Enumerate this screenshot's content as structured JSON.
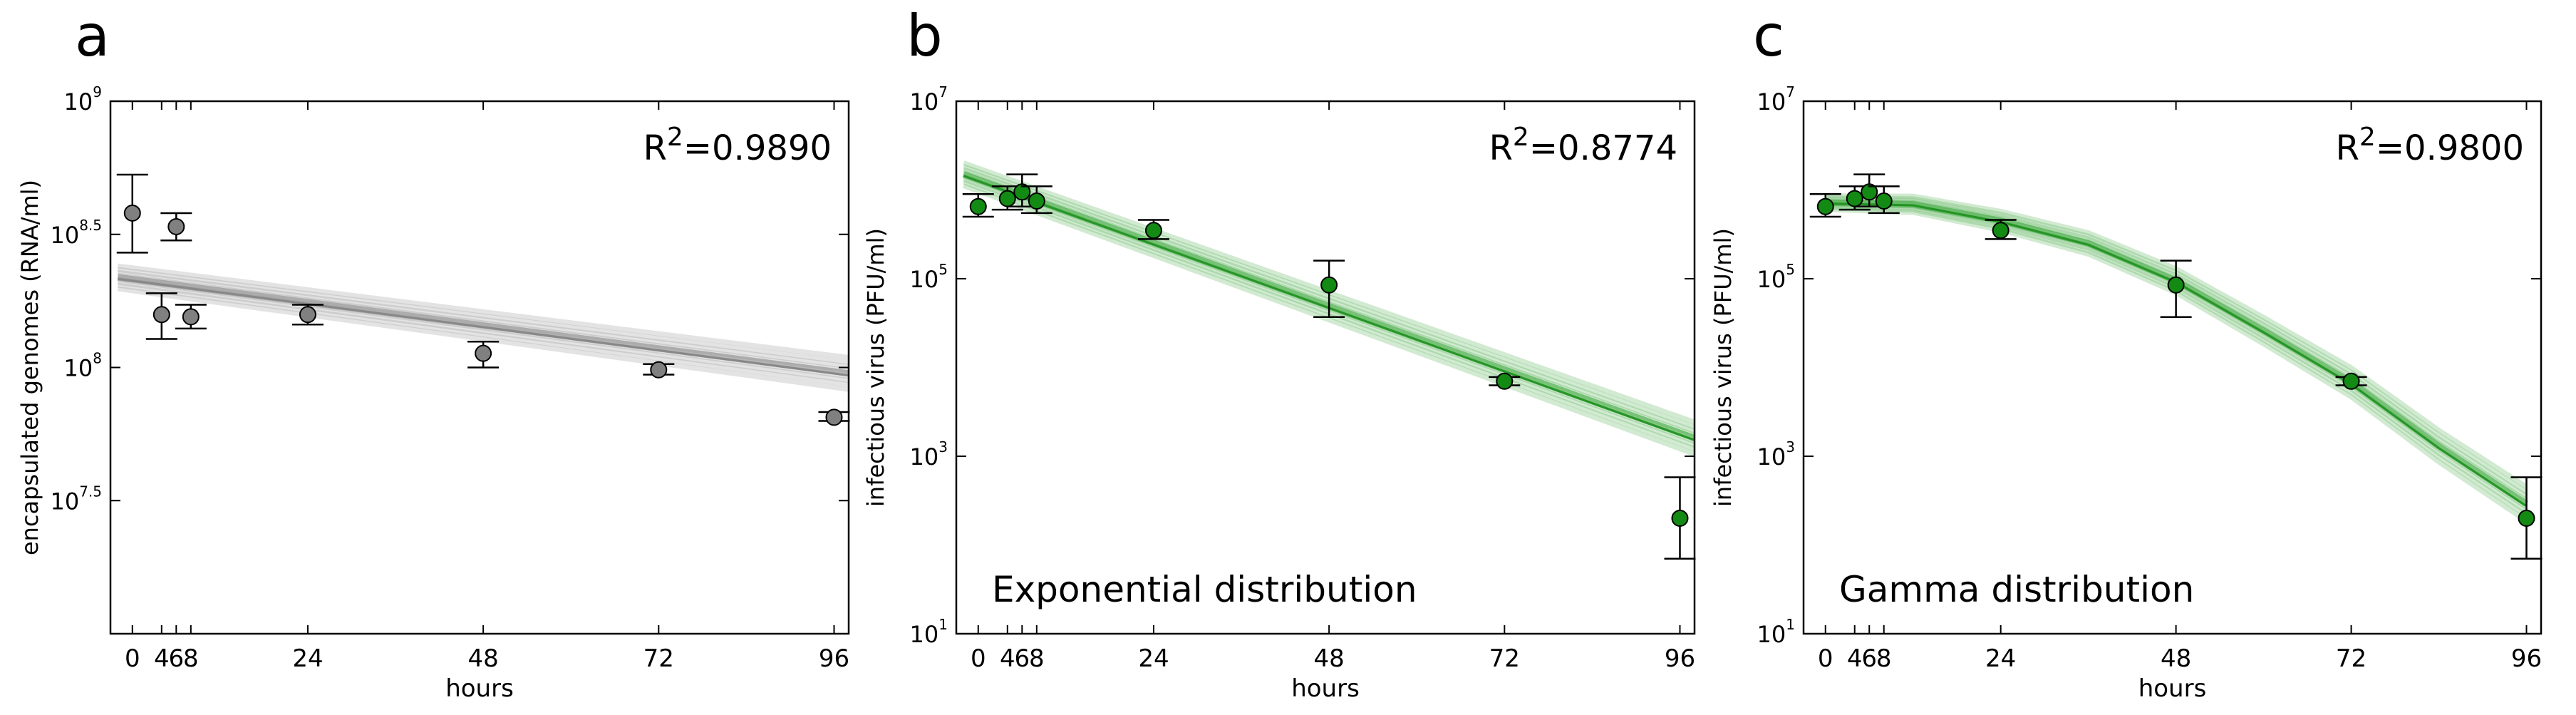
{
  "chart_data": [
    {
      "panel_label": "a",
      "type": "scatter",
      "title": "",
      "xlabel": "hours",
      "ylabel": "encapsulated genomes (RNA/ml)",
      "xlim": [
        -3,
        98
      ],
      "ylim": [
        10000000,
        1000000000
      ],
      "log_y": true,
      "x_ticks": [
        0,
        4,
        6,
        8,
        24,
        48,
        72,
        96
      ],
      "x_tick_labels": [
        "0",
        "4",
        "6",
        "8",
        "24",
        "48",
        "72",
        "96"
      ],
      "y_ticks": [
        31622777,
        100000000,
        316227766,
        1000000000
      ],
      "y_tick_labels": [
        {
          "base": "10",
          "exp": "7.5"
        },
        {
          "base": "10",
          "exp": "8"
        },
        {
          "base": "10",
          "exp": "8.5"
        },
        {
          "base": "10",
          "exp": "9"
        }
      ],
      "r2_label": {
        "prefix": "R",
        "sup": "2",
        "value": "=0.9890"
      },
      "annotation": "",
      "marker_color": "#808080",
      "band_color": "#808080",
      "fit_type": "line",
      "fit": {
        "x0": 0,
        "y0": 218000000,
        "x1": 96,
        "y1": 95000000
      },
      "points": [
        {
          "x": 0,
          "y": 380000000,
          "lo": 270000000,
          "hi": 530000000
        },
        {
          "x": 4,
          "y": 158000000,
          "lo": 128000000,
          "hi": 190000000
        },
        {
          "x": 6,
          "y": 338000000,
          "lo": 300000000,
          "hi": 380000000
        },
        {
          "x": 8,
          "y": 155000000,
          "lo": 140000000,
          "hi": 172000000
        },
        {
          "x": 24,
          "y": 158000000,
          "lo": 145000000,
          "hi": 172000000
        },
        {
          "x": 48,
          "y": 113000000,
          "lo": 100000000,
          "hi": 125000000
        },
        {
          "x": 72,
          "y": 98000000,
          "lo": 94000000,
          "hi": 103000000
        },
        {
          "x": 96,
          "y": 65000000,
          "lo": 63000000,
          "hi": 68000000
        }
      ]
    },
    {
      "panel_label": "b",
      "type": "scatter",
      "title": "",
      "xlabel": "hours",
      "ylabel": "infectious virus (PFU/ml)",
      "xlim": [
        -3,
        98
      ],
      "ylim": [
        10,
        10000000
      ],
      "log_y": true,
      "x_ticks": [
        0,
        4,
        6,
        8,
        24,
        48,
        72,
        96
      ],
      "x_tick_labels": [
        "0",
        "4",
        "6",
        "8",
        "24",
        "48",
        "72",
        "96"
      ],
      "y_ticks": [
        10,
        1000,
        100000,
        10000000
      ],
      "y_tick_labels": [
        {
          "base": "10",
          "exp": "1"
        },
        {
          "base": "10",
          "exp": "3"
        },
        {
          "base": "10",
          "exp": "5"
        },
        {
          "base": "10",
          "exp": "7"
        }
      ],
      "r2_label": {
        "prefix": "R",
        "sup": "2",
        "value": "=0.8774"
      },
      "annotation": "Exponential distribution",
      "marker_color": "#138a13",
      "band_color": "#2ca02c",
      "fit_type": "line",
      "fit": {
        "x0": 0,
        "y0": 1500000,
        "x1": 96,
        "y1": 1600
      },
      "points": [
        {
          "x": 0,
          "y": 650000,
          "lo": 500000,
          "hi": 900000
        },
        {
          "x": 4,
          "y": 800000,
          "lo": 600000,
          "hi": 1100000
        },
        {
          "x": 6,
          "y": 950000,
          "lo": 650000,
          "hi": 1500000
        },
        {
          "x": 8,
          "y": 750000,
          "lo": 550000,
          "hi": 1100000
        },
        {
          "x": 24,
          "y": 350000,
          "lo": 280000,
          "hi": 460000
        },
        {
          "x": 48,
          "y": 85000,
          "lo": 37000,
          "hi": 160000
        },
        {
          "x": 72,
          "y": 7000,
          "lo": 6300,
          "hi": 7800
        },
        {
          "x": 96,
          "y": 200,
          "lo": 70,
          "hi": 580
        }
      ]
    },
    {
      "panel_label": "c",
      "type": "scatter",
      "title": "",
      "xlabel": "hours",
      "ylabel": "infectious virus (PFU/ml)",
      "xlim": [
        -3,
        98
      ],
      "ylim": [
        10,
        10000000
      ],
      "log_y": true,
      "x_ticks": [
        0,
        4,
        6,
        8,
        24,
        48,
        72,
        96
      ],
      "x_tick_labels": [
        "0",
        "4",
        "6",
        "8",
        "24",
        "48",
        "72",
        "96"
      ],
      "y_ticks": [
        10,
        1000,
        100000,
        10000000
      ],
      "y_tick_labels": [
        {
          "base": "10",
          "exp": "1"
        },
        {
          "base": "10",
          "exp": "3"
        },
        {
          "base": "10",
          "exp": "5"
        },
        {
          "base": "10",
          "exp": "7"
        }
      ],
      "r2_label": {
        "prefix": "R",
        "sup": "2",
        "value": "=0.9800"
      },
      "annotation": "Gamma distribution",
      "marker_color": "#138a13",
      "band_color": "#2ca02c",
      "fit_type": "curve",
      "fit_points": [
        [
          0,
          720000
        ],
        [
          12,
          690000
        ],
        [
          24,
          450000
        ],
        [
          36,
          250000
        ],
        [
          48,
          95000
        ],
        [
          60,
          26000
        ],
        [
          72,
          6800
        ],
        [
          84,
          1300
        ],
        [
          96,
          290
        ]
      ],
      "points": [
        {
          "x": 0,
          "y": 650000,
          "lo": 500000,
          "hi": 900000
        },
        {
          "x": 4,
          "y": 800000,
          "lo": 600000,
          "hi": 1100000
        },
        {
          "x": 6,
          "y": 950000,
          "lo": 650000,
          "hi": 1500000
        },
        {
          "x": 8,
          "y": 750000,
          "lo": 550000,
          "hi": 1100000
        },
        {
          "x": 24,
          "y": 350000,
          "lo": 280000,
          "hi": 460000
        },
        {
          "x": 48,
          "y": 85000,
          "lo": 37000,
          "hi": 160000
        },
        {
          "x": 72,
          "y": 7000,
          "lo": 6300,
          "hi": 7800
        },
        {
          "x": 96,
          "y": 200,
          "lo": 70,
          "hi": 580
        }
      ]
    }
  ]
}
